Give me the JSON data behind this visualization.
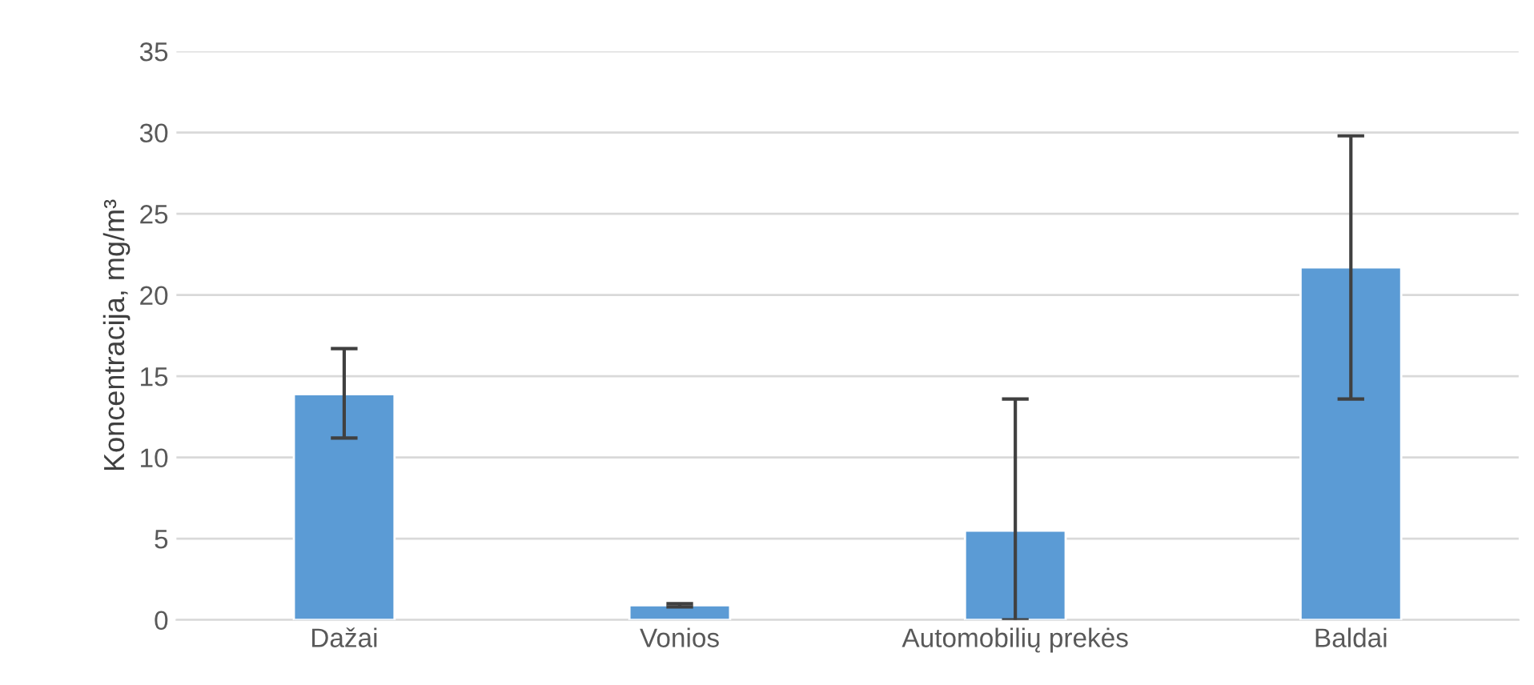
{
  "chart_data": {
    "type": "bar",
    "ylabel": "Koncentracija, mg/m³",
    "categories": [
      "Dažai",
      "Vonios",
      "Automobilių prekės",
      "Baldai"
    ],
    "values": [
      13.9,
      0.9,
      5.5,
      21.7
    ],
    "errors": [
      [
        11.2,
        16.7
      ],
      [
        0.8,
        1.0
      ],
      [
        0,
        13.6
      ],
      [
        13.6,
        29.8
      ]
    ],
    "color": "#5b9bd5",
    "ylim": [
      0,
      35
    ],
    "yticks": [
      0,
      5,
      10,
      15,
      20,
      25,
      30,
      35
    ],
    "grid": "y",
    "legend": false
  }
}
